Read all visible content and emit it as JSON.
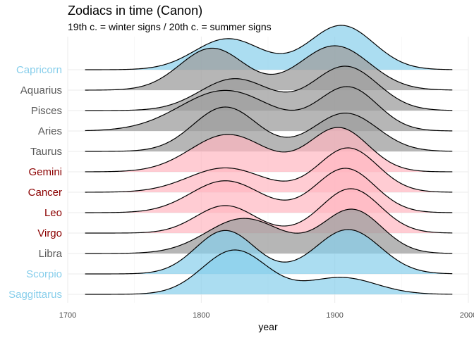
{
  "chart_data": {
    "type": "area",
    "title": "Zodiacs in time (Canon)",
    "subtitle": "19th c. = winter signs / 20th c. = summer signs",
    "xlabel": "year",
    "ylabel": "",
    "xlim": [
      1700,
      2000
    ],
    "x_ticks": [
      "1700",
      "1800",
      "1900",
      "2000"
    ],
    "data_range": [
      1713,
      1988
    ],
    "legend": "none",
    "grid": true,
    "group_colors": {
      "winter": "#87ceeb",
      "summer": "#ffb6c1",
      "other": "#9e9e9e"
    },
    "label_colors": {
      "winter": "#87ceeb",
      "summer": "#8b0000",
      "other": "#595959"
    },
    "series": [
      {
        "name": "Saggittarus",
        "group": "winter",
        "peaks": [
          {
            "center": 1825,
            "sd": 24,
            "weight": 1.0
          },
          {
            "center": 1905,
            "sd": 26,
            "weight": 0.38
          }
        ]
      },
      {
        "name": "Scorpio",
        "group": "winter",
        "peaks": [
          {
            "center": 1818,
            "sd": 22,
            "weight": 0.9
          },
          {
            "center": 1910,
            "sd": 24,
            "weight": 0.92
          }
        ]
      },
      {
        "name": "Libra",
        "group": "other",
        "peaks": [
          {
            "center": 1832,
            "sd": 28,
            "weight": 0.8
          },
          {
            "center": 1913,
            "sd": 22,
            "weight": 1.0
          }
        ]
      },
      {
        "name": "Virgo",
        "group": "summer",
        "peaks": [
          {
            "center": 1818,
            "sd": 22,
            "weight": 0.62
          },
          {
            "center": 1912,
            "sd": 22,
            "weight": 1.0
          }
        ]
      },
      {
        "name": "Leo",
        "group": "summer",
        "peaks": [
          {
            "center": 1818,
            "sd": 26,
            "weight": 0.72
          },
          {
            "center": 1908,
            "sd": 22,
            "weight": 1.0
          }
        ]
      },
      {
        "name": "Cancer",
        "group": "summer",
        "peaks": [
          {
            "center": 1818,
            "sd": 28,
            "weight": 0.55
          },
          {
            "center": 1910,
            "sd": 22,
            "weight": 1.0
          }
        ]
      },
      {
        "name": "Gemini",
        "group": "summer",
        "peaks": [
          {
            "center": 1820,
            "sd": 28,
            "weight": 0.85
          },
          {
            "center": 1903,
            "sd": 22,
            "weight": 1.0
          }
        ]
      },
      {
        "name": "Taurus",
        "group": "other",
        "peaks": [
          {
            "center": 1818,
            "sd": 24,
            "weight": 0.95
          },
          {
            "center": 1908,
            "sd": 24,
            "weight": 0.82
          }
        ]
      },
      {
        "name": "Aries",
        "group": "other",
        "peaks": [
          {
            "center": 1818,
            "sd": 34,
            "weight": 0.75
          },
          {
            "center": 1910,
            "sd": 22,
            "weight": 0.8
          }
        ]
      },
      {
        "name": "Pisces",
        "group": "other",
        "peaks": [
          {
            "center": 1825,
            "sd": 26,
            "weight": 0.72
          },
          {
            "center": 1908,
            "sd": 24,
            "weight": 1.0
          }
        ]
      },
      {
        "name": "Aquarius",
        "group": "other",
        "peaks": [
          {
            "center": 1808,
            "sd": 24,
            "weight": 0.85
          },
          {
            "center": 1900,
            "sd": 26,
            "weight": 0.9
          }
        ]
      },
      {
        "name": "Capricorn",
        "group": "winter",
        "peaks": [
          {
            "center": 1820,
            "sd": 25,
            "weight": 0.7
          },
          {
            "center": 1905,
            "sd": 24,
            "weight": 1.0
          }
        ]
      }
    ]
  }
}
